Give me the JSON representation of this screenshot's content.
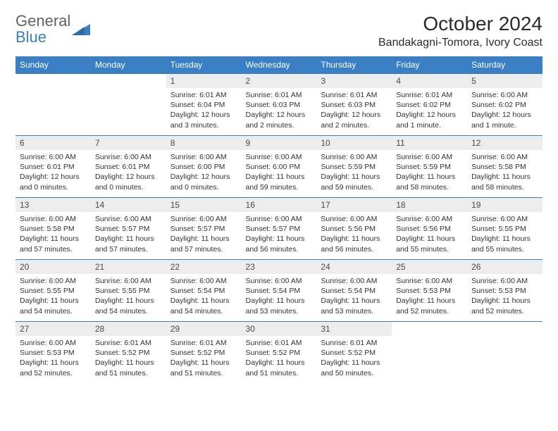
{
  "logo": {
    "general": "General",
    "blue": "Blue"
  },
  "title": "October 2024",
  "location": "Bandakagni-Tomora, Ivory Coast",
  "colors": {
    "header_bg": "#3a7fc4",
    "header_text": "#ffffff",
    "daynum_bg": "#ededed",
    "border": "#3a7fc4",
    "text": "#333333",
    "logo_gray": "#5f6368",
    "logo_blue": "#3a7fc4"
  },
  "weekdays": [
    "Sunday",
    "Monday",
    "Tuesday",
    "Wednesday",
    "Thursday",
    "Friday",
    "Saturday"
  ],
  "weeks": [
    [
      null,
      null,
      {
        "n": "1",
        "sr": "Sunrise: 6:01 AM",
        "ss": "Sunset: 6:04 PM",
        "dl": "Daylight: 12 hours and 3 minutes."
      },
      {
        "n": "2",
        "sr": "Sunrise: 6:01 AM",
        "ss": "Sunset: 6:03 PM",
        "dl": "Daylight: 12 hours and 2 minutes."
      },
      {
        "n": "3",
        "sr": "Sunrise: 6:01 AM",
        "ss": "Sunset: 6:03 PM",
        "dl": "Daylight: 12 hours and 2 minutes."
      },
      {
        "n": "4",
        "sr": "Sunrise: 6:01 AM",
        "ss": "Sunset: 6:02 PM",
        "dl": "Daylight: 12 hours and 1 minute."
      },
      {
        "n": "5",
        "sr": "Sunrise: 6:00 AM",
        "ss": "Sunset: 6:02 PM",
        "dl": "Daylight: 12 hours and 1 minute."
      }
    ],
    [
      {
        "n": "6",
        "sr": "Sunrise: 6:00 AM",
        "ss": "Sunset: 6:01 PM",
        "dl": "Daylight: 12 hours and 0 minutes."
      },
      {
        "n": "7",
        "sr": "Sunrise: 6:00 AM",
        "ss": "Sunset: 6:01 PM",
        "dl": "Daylight: 12 hours and 0 minutes."
      },
      {
        "n": "8",
        "sr": "Sunrise: 6:00 AM",
        "ss": "Sunset: 6:00 PM",
        "dl": "Daylight: 12 hours and 0 minutes."
      },
      {
        "n": "9",
        "sr": "Sunrise: 6:00 AM",
        "ss": "Sunset: 6:00 PM",
        "dl": "Daylight: 11 hours and 59 minutes."
      },
      {
        "n": "10",
        "sr": "Sunrise: 6:00 AM",
        "ss": "Sunset: 5:59 PM",
        "dl": "Daylight: 11 hours and 59 minutes."
      },
      {
        "n": "11",
        "sr": "Sunrise: 6:00 AM",
        "ss": "Sunset: 5:59 PM",
        "dl": "Daylight: 11 hours and 58 minutes."
      },
      {
        "n": "12",
        "sr": "Sunrise: 6:00 AM",
        "ss": "Sunset: 5:58 PM",
        "dl": "Daylight: 11 hours and 58 minutes."
      }
    ],
    [
      {
        "n": "13",
        "sr": "Sunrise: 6:00 AM",
        "ss": "Sunset: 5:58 PM",
        "dl": "Daylight: 11 hours and 57 minutes."
      },
      {
        "n": "14",
        "sr": "Sunrise: 6:00 AM",
        "ss": "Sunset: 5:57 PM",
        "dl": "Daylight: 11 hours and 57 minutes."
      },
      {
        "n": "15",
        "sr": "Sunrise: 6:00 AM",
        "ss": "Sunset: 5:57 PM",
        "dl": "Daylight: 11 hours and 57 minutes."
      },
      {
        "n": "16",
        "sr": "Sunrise: 6:00 AM",
        "ss": "Sunset: 5:57 PM",
        "dl": "Daylight: 11 hours and 56 minutes."
      },
      {
        "n": "17",
        "sr": "Sunrise: 6:00 AM",
        "ss": "Sunset: 5:56 PM",
        "dl": "Daylight: 11 hours and 56 minutes."
      },
      {
        "n": "18",
        "sr": "Sunrise: 6:00 AM",
        "ss": "Sunset: 5:56 PM",
        "dl": "Daylight: 11 hours and 55 minutes."
      },
      {
        "n": "19",
        "sr": "Sunrise: 6:00 AM",
        "ss": "Sunset: 5:55 PM",
        "dl": "Daylight: 11 hours and 55 minutes."
      }
    ],
    [
      {
        "n": "20",
        "sr": "Sunrise: 6:00 AM",
        "ss": "Sunset: 5:55 PM",
        "dl": "Daylight: 11 hours and 54 minutes."
      },
      {
        "n": "21",
        "sr": "Sunrise: 6:00 AM",
        "ss": "Sunset: 5:55 PM",
        "dl": "Daylight: 11 hours and 54 minutes."
      },
      {
        "n": "22",
        "sr": "Sunrise: 6:00 AM",
        "ss": "Sunset: 5:54 PM",
        "dl": "Daylight: 11 hours and 54 minutes."
      },
      {
        "n": "23",
        "sr": "Sunrise: 6:00 AM",
        "ss": "Sunset: 5:54 PM",
        "dl": "Daylight: 11 hours and 53 minutes."
      },
      {
        "n": "24",
        "sr": "Sunrise: 6:00 AM",
        "ss": "Sunset: 5:54 PM",
        "dl": "Daylight: 11 hours and 53 minutes."
      },
      {
        "n": "25",
        "sr": "Sunrise: 6:00 AM",
        "ss": "Sunset: 5:53 PM",
        "dl": "Daylight: 11 hours and 52 minutes."
      },
      {
        "n": "26",
        "sr": "Sunrise: 6:00 AM",
        "ss": "Sunset: 5:53 PM",
        "dl": "Daylight: 11 hours and 52 minutes."
      }
    ],
    [
      {
        "n": "27",
        "sr": "Sunrise: 6:00 AM",
        "ss": "Sunset: 5:53 PM",
        "dl": "Daylight: 11 hours and 52 minutes."
      },
      {
        "n": "28",
        "sr": "Sunrise: 6:01 AM",
        "ss": "Sunset: 5:52 PM",
        "dl": "Daylight: 11 hours and 51 minutes."
      },
      {
        "n": "29",
        "sr": "Sunrise: 6:01 AM",
        "ss": "Sunset: 5:52 PM",
        "dl": "Daylight: 11 hours and 51 minutes."
      },
      {
        "n": "30",
        "sr": "Sunrise: 6:01 AM",
        "ss": "Sunset: 5:52 PM",
        "dl": "Daylight: 11 hours and 51 minutes."
      },
      {
        "n": "31",
        "sr": "Sunrise: 6:01 AM",
        "ss": "Sunset: 5:52 PM",
        "dl": "Daylight: 11 hours and 50 minutes."
      },
      null,
      null
    ]
  ]
}
